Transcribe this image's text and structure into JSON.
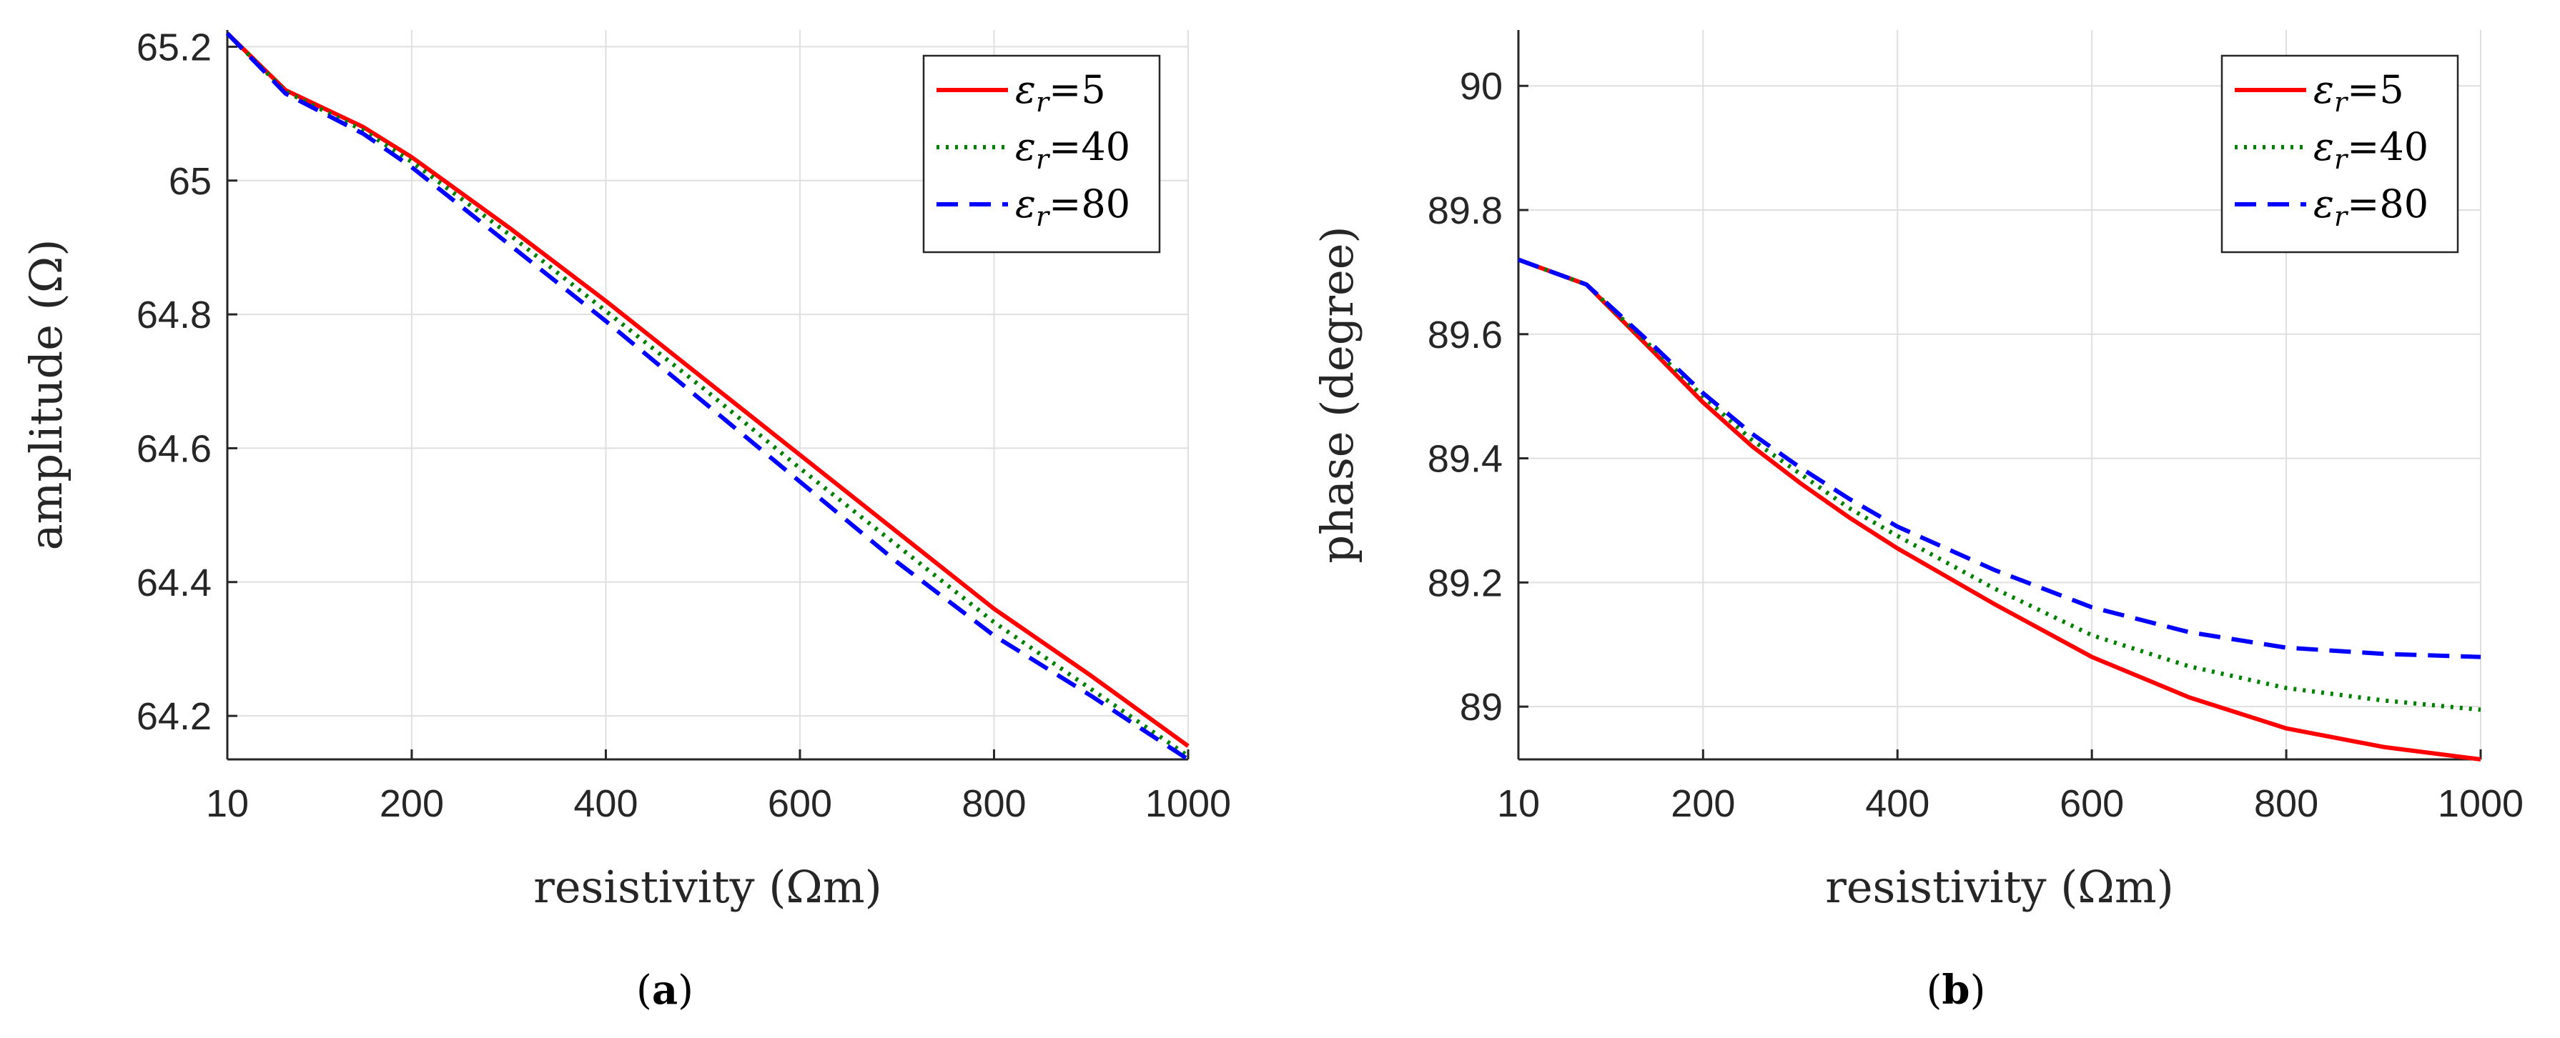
{
  "chart_data": [
    {
      "type": "line",
      "caption_open": "(",
      "caption_letter": "a",
      "caption_close": ")",
      "title": "",
      "xlabel": "resistivity (Ωm)",
      "ylabel": "amplitude (Ω)",
      "xlim": [
        10,
        1000
      ],
      "ylim": [
        64.135,
        65.225
      ],
      "xticks": [
        10,
        200,
        400,
        600,
        800,
        1000
      ],
      "xtick_labels": [
        "10",
        "200",
        "400",
        "600",
        "800",
        "1000"
      ],
      "yticks": [
        64.2,
        64.4,
        64.6,
        64.8,
        65.0,
        65.2
      ],
      "ytick_labels": [
        "64.2",
        "64.4",
        "64.6",
        "64.8",
        "65",
        "65.2"
      ],
      "grid": true,
      "legend_position": "top-right",
      "x": [
        10,
        70,
        150,
        200,
        300,
        400,
        500,
        600,
        700,
        800,
        900,
        1000
      ],
      "series": [
        {
          "name_symbol": "ε",
          "name_sub": "r",
          "name_eq": "=",
          "name_value": "5",
          "color": "#ff0000",
          "dash": "solid",
          "values": [
            65.22,
            65.135,
            65.08,
            65.035,
            64.93,
            64.82,
            64.705,
            64.59,
            64.475,
            64.36,
            64.26,
            64.155
          ]
        },
        {
          "name_symbol": "ε",
          "name_sub": "r",
          "name_eq": "=",
          "name_value": "40",
          "color": "#008000",
          "dash": "dotted",
          "values": [
            65.22,
            65.133,
            65.075,
            65.028,
            64.92,
            64.805,
            64.69,
            64.57,
            64.455,
            64.34,
            64.24,
            64.14
          ]
        },
        {
          "name_symbol": "ε",
          "name_sub": "r",
          "name_eq": "=",
          "name_value": "80",
          "color": "#0000ff",
          "dash": "dashed",
          "values": [
            65.22,
            65.13,
            65.07,
            65.02,
            64.905,
            64.79,
            64.67,
            64.55,
            64.43,
            64.32,
            64.23,
            64.135
          ]
        }
      ]
    },
    {
      "type": "line",
      "caption_open": "(",
      "caption_letter": "b",
      "caption_close": ")",
      "title": "",
      "xlabel": "resistivity (Ωm)",
      "ylabel": "phase (degree)",
      "xlim": [
        10,
        1000
      ],
      "ylim": [
        88.915,
        90.09
      ],
      "xticks": [
        10,
        200,
        400,
        600,
        800,
        1000
      ],
      "xtick_labels": [
        "10",
        "200",
        "400",
        "600",
        "800",
        "1000"
      ],
      "yticks": [
        89.0,
        89.2,
        89.4,
        89.6,
        89.8,
        90.0
      ],
      "ytick_labels": [
        "89",
        "89.2",
        "89.4",
        "89.6",
        "89.8",
        "90"
      ],
      "grid": true,
      "legend_position": "top-right",
      "x": [
        10,
        80,
        150,
        200,
        250,
        300,
        350,
        400,
        500,
        600,
        700,
        800,
        900,
        1000
      ],
      "series": [
        {
          "name_symbol": "ε",
          "name_sub": "r",
          "name_eq": "=",
          "name_value": "5",
          "color": "#ff0000",
          "dash": "solid",
          "values": [
            89.72,
            89.68,
            89.57,
            89.49,
            89.42,
            89.36,
            89.305,
            89.255,
            89.165,
            89.08,
            89.015,
            88.965,
            88.935,
            88.915
          ]
        },
        {
          "name_symbol": "ε",
          "name_sub": "r",
          "name_eq": "=",
          "name_value": "40",
          "color": "#008000",
          "dash": "dotted",
          "values": [
            89.72,
            89.68,
            89.575,
            89.5,
            89.43,
            89.375,
            89.32,
            89.275,
            89.19,
            89.115,
            89.065,
            89.03,
            89.01,
            88.995
          ]
        },
        {
          "name_symbol": "ε",
          "name_sub": "r",
          "name_eq": "=",
          "name_value": "80",
          "color": "#0000ff",
          "dash": "dashed",
          "values": [
            89.72,
            89.68,
            89.58,
            89.505,
            89.44,
            89.385,
            89.335,
            89.29,
            89.22,
            89.16,
            89.12,
            89.095,
            89.085,
            89.08
          ]
        }
      ]
    }
  ]
}
